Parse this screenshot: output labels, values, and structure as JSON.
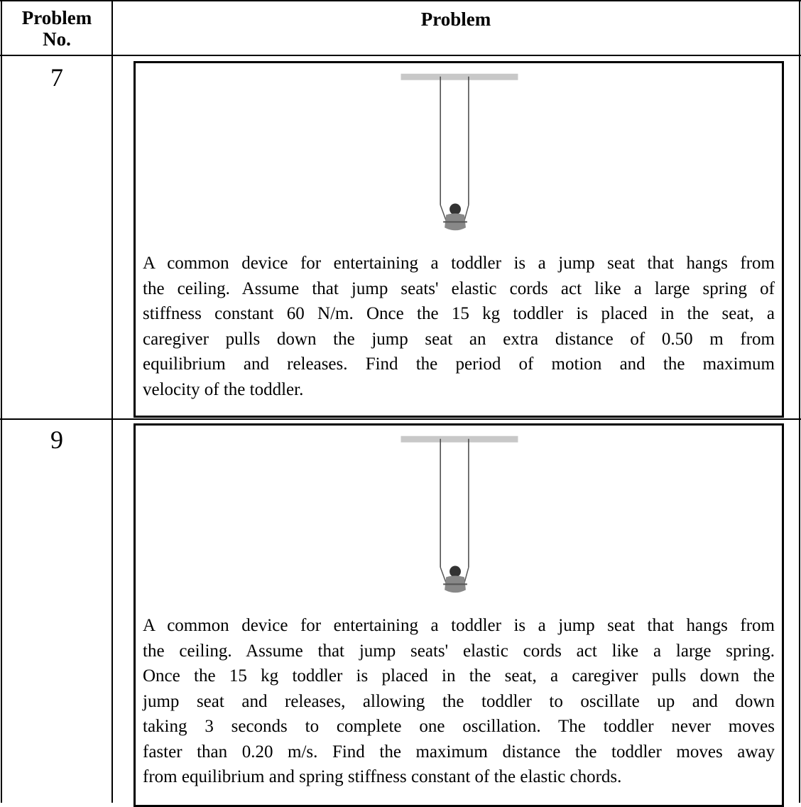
{
  "table": {
    "header": [
      "Problem No.",
      "Problem"
    ],
    "rows": [
      {
        "number": "7",
        "lines": [
          "A common device for entertaining a toddler is a jump seat that hangs from",
          "the ceiling.  Assume that jump seats' elastic cords act like a large spring of",
          "stiffness constant 60 N/m.  Once the 15 kg toddler is placed in the seat, a",
          "caregiver pulls down the jump seat an extra distance of 0.50 m from",
          "equilibrium and releases.  Find the period of motion and the maximum",
          "velocity of the toddler."
        ]
      },
      {
        "number": "9",
        "lines": [
          "A common device for entertaining a toddler is a jump seat that hangs from",
          "the ceiling.  Assume that jump seats' elastic cords act like a large spring.",
          "Once the 15 kg toddler is placed in the seat, a caregiver pulls down the",
          "jump seat and releases, allowing the toddler to oscillate up and down",
          "taking 3 seconds to complete one oscillation.  The toddler never moves",
          "faster than 0.20 m/s.  Find the maximum distance the toddler moves away",
          "from equilibrium and spring stiffness constant of the elastic chords."
        ]
      }
    ]
  }
}
